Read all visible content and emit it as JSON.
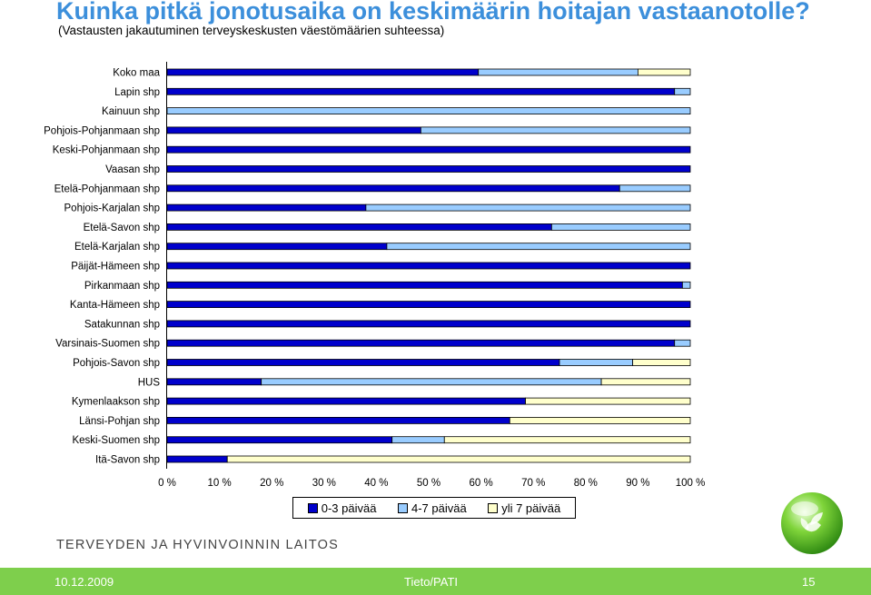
{
  "header": {
    "title": "Kuinka pitkä jonotusaika on keskimäärin hoitajan vastaanotolle?",
    "subtitle": "(Vastausten jakautuminen terveyskeskusten väestömäärien suhteessa)"
  },
  "chart_data": {
    "type": "bar",
    "orientation": "horizontal",
    "stacked": "percent",
    "categories": [
      "Koko maa",
      "Lapin shp",
      "Kainuun shp",
      "Pohjois-Pohjanmaan shp",
      "Keski-Pohjanmaan shp",
      "Vaasan shp",
      "Etelä-Pohjanmaan shp",
      "Pohjois-Karjalan shp",
      "Etelä-Savon shp",
      "Etelä-Karjalan shp",
      "Päijät-Hämeen shp",
      "Pirkanmaan shp",
      "Kanta-Hämeen shp",
      "Satakunnan shp",
      "Varsinais-Suomen shp",
      "Pohjois-Savon shp",
      "HUS",
      "Kymenlaakson shp",
      "Länsi-Pohjan shp",
      "Keski-Suomen shp",
      "Itä-Savon shp"
    ],
    "series": [
      {
        "name": "0-3 päivää",
        "color": "#0000cc",
        "values": [
          59.5,
          97,
          0,
          48.5,
          100,
          100,
          86.5,
          38,
          73.5,
          42,
          100,
          98.5,
          100,
          100,
          97,
          75,
          18,
          68.5,
          65.5,
          43,
          11.5
        ]
      },
      {
        "name": "4-7 päivää",
        "color": "#99ccff",
        "values": [
          30.5,
          3,
          100,
          51.5,
          0,
          0,
          13.5,
          62,
          26.5,
          58,
          0,
          1.5,
          0,
          0,
          3,
          14,
          65,
          0,
          0,
          10,
          0
        ]
      },
      {
        "name": "yli 7 päivää",
        "color": "#ffffcc",
        "values": [
          10,
          0,
          0,
          0,
          0,
          0,
          0,
          0,
          0,
          0,
          0,
          0,
          0,
          0,
          0,
          11,
          17,
          31.5,
          34.5,
          47,
          88.5
        ]
      }
    ],
    "x_ticks": [
      "0 %",
      "10 %",
      "20 %",
      "30 %",
      "40 %",
      "50 %",
      "60 %",
      "70 %",
      "80 %",
      "90 %",
      "100 %"
    ],
    "xlim": [
      0,
      100
    ],
    "grid": false,
    "legend": "bottom"
  },
  "footer": {
    "organization": "TERVEYDEN JA HYVINVOINNIN LAITOS",
    "date": "10.12.2009",
    "center": "Tieto/PATI",
    "page": "15"
  }
}
